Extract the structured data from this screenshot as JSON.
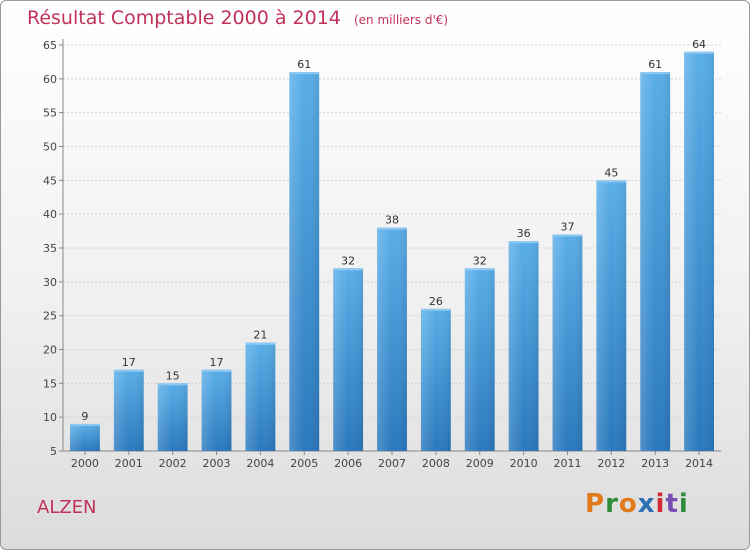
{
  "header": {
    "title": "Résultat Comptable 2000 à 2014",
    "subtitle": "(en milliers d'€)"
  },
  "footer": {
    "location": "ALZEN",
    "logo": "Proxiti",
    "logo_colors": [
      "#e07a1a",
      "#2e8b3a",
      "#e07a1a",
      "#2a6fb5",
      "#d42a3a",
      "#7a4fb5",
      "#2e8b3a"
    ]
  },
  "chart_data": {
    "type": "bar",
    "categories": [
      "2000",
      "2001",
      "2002",
      "2003",
      "2004",
      "2005",
      "2006",
      "2007",
      "2008",
      "2009",
      "2010",
      "2011",
      "2012",
      "2013",
      "2014"
    ],
    "values": [
      9,
      17,
      15,
      17,
      21,
      61,
      32,
      38,
      26,
      32,
      36,
      37,
      45,
      61,
      64
    ],
    "title": "Résultat Comptable 2000 à 2014",
    "subtitle": "(en milliers d'€)",
    "xlabel": "",
    "ylabel": "",
    "ylim": [
      5,
      65
    ],
    "yticks": [
      5,
      10,
      15,
      20,
      25,
      30,
      35,
      40,
      45,
      50,
      55,
      60,
      65
    ],
    "grid": true,
    "bar_color": "#3a8fd6",
    "data_labels": true
  }
}
